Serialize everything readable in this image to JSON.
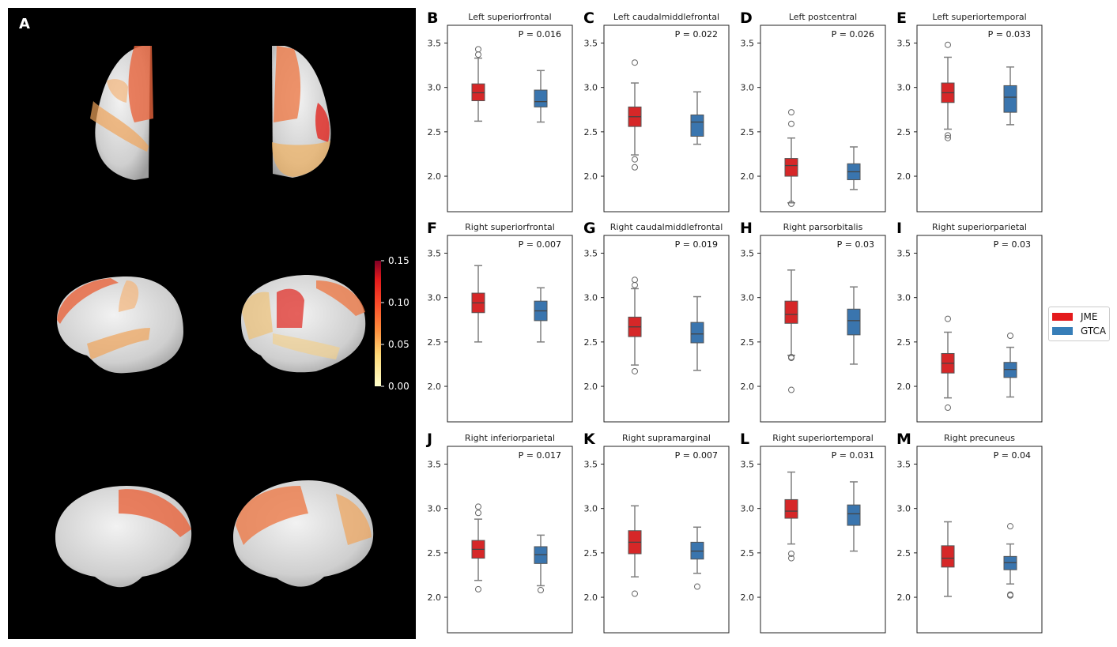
{
  "brain_panel": {
    "letter": "A",
    "colorbar": {
      "ticks": [
        "0.00",
        "0.05",
        "0.10",
        "0.15"
      ],
      "range": [
        0.0,
        0.15
      ],
      "colormap": "YlOrRd"
    }
  },
  "legend": {
    "items": [
      {
        "label": "JME",
        "color": "#e41a1c"
      },
      {
        "label": "GTCA",
        "color": "#377eb8"
      }
    ]
  },
  "chart_data": [
    {
      "letter": "B",
      "type": "box",
      "title": "Left superiorfrontal",
      "p": "P = 0.016",
      "ylim": [
        1.6,
        3.7
      ],
      "yticks": [
        "2.0",
        "2.5",
        "3.0",
        "3.5"
      ],
      "series": [
        {
          "name": "JME",
          "color": "#d62728",
          "q1": 2.85,
          "median": 2.94,
          "q3": 3.04,
          "whislo": 2.62,
          "whishi": 3.33,
          "fliers": [
            3.37,
            3.43
          ]
        },
        {
          "name": "GTCA",
          "color": "#3a75ae",
          "q1": 2.78,
          "median": 2.84,
          "q3": 2.97,
          "whislo": 2.61,
          "whishi": 3.19,
          "fliers": []
        }
      ]
    },
    {
      "letter": "C",
      "type": "box",
      "title": "Left caudalmiddlefrontal",
      "p": "P = 0.022",
      "ylim": [
        1.6,
        3.7
      ],
      "yticks": [
        "2.0",
        "2.5",
        "3.0",
        "3.5"
      ],
      "series": [
        {
          "name": "JME",
          "color": "#d62728",
          "q1": 2.56,
          "median": 2.67,
          "q3": 2.78,
          "whislo": 2.24,
          "whishi": 3.05,
          "fliers": [
            3.28,
            2.19,
            2.1
          ]
        },
        {
          "name": "GTCA",
          "color": "#3a75ae",
          "q1": 2.45,
          "median": 2.61,
          "q3": 2.69,
          "whislo": 2.36,
          "whishi": 2.95,
          "fliers": []
        }
      ]
    },
    {
      "letter": "D",
      "type": "box",
      "title": "Left postcentral",
      "p": "P = 0.026",
      "ylim": [
        1.6,
        3.7
      ],
      "yticks": [
        "2.0",
        "2.5",
        "3.0",
        "3.5"
      ],
      "series": [
        {
          "name": "JME",
          "color": "#d62728",
          "q1": 2.0,
          "median": 2.12,
          "q3": 2.2,
          "whislo": 1.7,
          "whishi": 2.43,
          "fliers": [
            2.72,
            2.59,
            1.69
          ]
        },
        {
          "name": "GTCA",
          "color": "#3a75ae",
          "q1": 1.96,
          "median": 2.05,
          "q3": 2.14,
          "whislo": 1.85,
          "whishi": 2.33,
          "fliers": []
        }
      ]
    },
    {
      "letter": "E",
      "type": "box",
      "title": "Left superiortemporal",
      "p": "P = 0.033",
      "ylim": [
        1.6,
        3.7
      ],
      "yticks": [
        "2.0",
        "2.5",
        "3.0",
        "3.5"
      ],
      "series": [
        {
          "name": "JME",
          "color": "#d62728",
          "q1": 2.83,
          "median": 2.94,
          "q3": 3.05,
          "whislo": 2.53,
          "whishi": 3.34,
          "fliers": [
            3.48,
            2.46,
            2.43
          ]
        },
        {
          "name": "GTCA",
          "color": "#3a75ae",
          "q1": 2.72,
          "median": 2.89,
          "q3": 3.02,
          "whislo": 2.58,
          "whishi": 3.23,
          "fliers": []
        }
      ]
    },
    {
      "letter": "F",
      "type": "box",
      "title": "Right superiorfrontal",
      "p": "P = 0.007",
      "ylim": [
        1.6,
        3.7
      ],
      "yticks": [
        "2.0",
        "2.5",
        "3.0",
        "3.5"
      ],
      "series": [
        {
          "name": "JME",
          "color": "#d62728",
          "q1": 2.83,
          "median": 2.94,
          "q3": 3.05,
          "whislo": 2.5,
          "whishi": 3.36,
          "fliers": []
        },
        {
          "name": "GTCA",
          "color": "#3a75ae",
          "q1": 2.74,
          "median": 2.85,
          "q3": 2.96,
          "whislo": 2.5,
          "whishi": 3.11,
          "fliers": []
        }
      ]
    },
    {
      "letter": "G",
      "type": "box",
      "title": "Right caudalmiddlefrontal",
      "p": "P = 0.019",
      "ylim": [
        1.6,
        3.7
      ],
      "yticks": [
        "2.0",
        "2.5",
        "3.0",
        "3.5"
      ],
      "series": [
        {
          "name": "JME",
          "color": "#d62728",
          "q1": 2.56,
          "median": 2.67,
          "q3": 2.78,
          "whislo": 2.24,
          "whishi": 3.1,
          "fliers": [
            3.2,
            3.14,
            2.17
          ]
        },
        {
          "name": "GTCA",
          "color": "#3a75ae",
          "q1": 2.49,
          "median": 2.59,
          "q3": 2.72,
          "whislo": 2.18,
          "whishi": 3.01,
          "fliers": []
        }
      ]
    },
    {
      "letter": "H",
      "type": "box",
      "title": "Right parsorbitalis",
      "p": "P = 0.03",
      "ylim": [
        1.6,
        3.7
      ],
      "yticks": [
        "2.0",
        "2.5",
        "3.0",
        "3.5"
      ],
      "series": [
        {
          "name": "JME",
          "color": "#d62728",
          "q1": 2.71,
          "median": 2.81,
          "q3": 2.96,
          "whislo": 2.35,
          "whishi": 3.31,
          "fliers": [
            2.33,
            2.32,
            1.96
          ]
        },
        {
          "name": "GTCA",
          "color": "#3a75ae",
          "q1": 2.58,
          "median": 2.74,
          "q3": 2.87,
          "whislo": 2.25,
          "whishi": 3.12,
          "fliers": []
        }
      ]
    },
    {
      "letter": "I",
      "type": "box",
      "title": "Right superiorparietal",
      "p": "P = 0.03",
      "ylim": [
        1.6,
        3.7
      ],
      "yticks": [
        "2.0",
        "2.5",
        "3.0",
        "3.5"
      ],
      "series": [
        {
          "name": "JME",
          "color": "#d62728",
          "q1": 2.15,
          "median": 2.26,
          "q3": 2.37,
          "whislo": 1.87,
          "whishi": 2.61,
          "fliers": [
            2.76,
            1.76
          ]
        },
        {
          "name": "GTCA",
          "color": "#3a75ae",
          "q1": 2.1,
          "median": 2.19,
          "q3": 2.27,
          "whislo": 1.88,
          "whishi": 2.44,
          "fliers": [
            2.57
          ]
        }
      ]
    },
    {
      "letter": "J",
      "type": "box",
      "title": "Right inferiorparietal",
      "p": "P = 0.017",
      "ylim": [
        1.6,
        3.7
      ],
      "yticks": [
        "2.0",
        "2.5",
        "3.0",
        "3.5"
      ],
      "series": [
        {
          "name": "JME",
          "color": "#d62728",
          "q1": 2.44,
          "median": 2.54,
          "q3": 2.64,
          "whislo": 2.19,
          "whishi": 2.88,
          "fliers": [
            3.02,
            2.95,
            2.09
          ]
        },
        {
          "name": "GTCA",
          "color": "#3a75ae",
          "q1": 2.38,
          "median": 2.48,
          "q3": 2.57,
          "whislo": 2.13,
          "whishi": 2.7,
          "fliers": [
            2.08
          ]
        }
      ]
    },
    {
      "letter": "K",
      "type": "box",
      "title": "Right supramarginal",
      "p": "P = 0.007",
      "ylim": [
        1.6,
        3.7
      ],
      "yticks": [
        "2.0",
        "2.5",
        "3.0",
        "3.5"
      ],
      "series": [
        {
          "name": "JME",
          "color": "#d62728",
          "q1": 2.49,
          "median": 2.62,
          "q3": 2.75,
          "whislo": 2.23,
          "whishi": 3.03,
          "fliers": [
            2.04
          ]
        },
        {
          "name": "GTCA",
          "color": "#3a75ae",
          "q1": 2.43,
          "median": 2.52,
          "q3": 2.62,
          "whislo": 2.27,
          "whishi": 2.79,
          "fliers": [
            2.12
          ]
        }
      ]
    },
    {
      "letter": "L",
      "type": "box",
      "title": "Right superiortemporal",
      "p": "P = 0.031",
      "ylim": [
        1.6,
        3.7
      ],
      "yticks": [
        "2.0",
        "2.5",
        "3.0",
        "3.5"
      ],
      "series": [
        {
          "name": "JME",
          "color": "#d62728",
          "q1": 2.89,
          "median": 2.97,
          "q3": 3.1,
          "whislo": 2.6,
          "whishi": 3.41,
          "fliers": [
            2.49,
            2.44
          ]
        },
        {
          "name": "GTCA",
          "color": "#3a75ae",
          "q1": 2.81,
          "median": 2.94,
          "q3": 3.04,
          "whislo": 2.52,
          "whishi": 3.3,
          "fliers": []
        }
      ]
    },
    {
      "letter": "M",
      "type": "box",
      "title": "Right precuneus",
      "p": "P = 0.04",
      "ylim": [
        1.6,
        3.7
      ],
      "yticks": [
        "2.0",
        "2.5",
        "3.0",
        "3.5"
      ],
      "series": [
        {
          "name": "JME",
          "color": "#d62728",
          "q1": 2.34,
          "median": 2.44,
          "q3": 2.58,
          "whislo": 2.01,
          "whishi": 2.85,
          "fliers": []
        },
        {
          "name": "GTCA",
          "color": "#3a75ae",
          "q1": 2.31,
          "median": 2.39,
          "q3": 2.46,
          "whislo": 2.15,
          "whishi": 2.6,
          "fliers": [
            2.8,
            2.03,
            2.02
          ]
        }
      ]
    }
  ]
}
